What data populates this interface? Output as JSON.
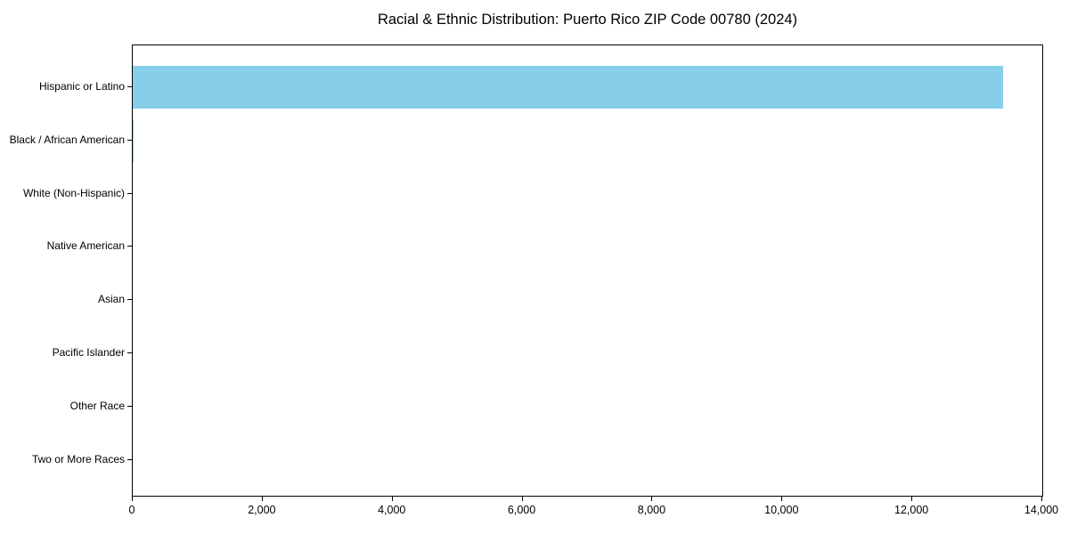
{
  "figure": {
    "background_color": "#ffffff",
    "spine_color": "#000000",
    "text_color": "#000000"
  },
  "chart_data": {
    "type": "bar",
    "orientation": "horizontal",
    "title": "Racial & Ethnic Distribution: Puerto Rico ZIP Code 00780 (2024)",
    "categories": [
      "Hispanic or Latino",
      "Black / African American",
      "White (Non-Hispanic)",
      "Native American",
      "Asian",
      "Pacific Islander",
      "Other Race",
      "Two or More Races"
    ],
    "values": [
      13390,
      20,
      0,
      0,
      0,
      0,
      0,
      0
    ],
    "xlabel": "",
    "ylabel": "",
    "xlim": [
      0,
      14000
    ],
    "xticks": [
      0,
      2000,
      4000,
      6000,
      8000,
      10000,
      12000,
      14000
    ],
    "xtick_labels": [
      "0",
      "2,000",
      "4,000",
      "6,000",
      "8,000",
      "10,000",
      "12,000",
      "14,000"
    ],
    "bar_color": "#87CEEB",
    "grid": false,
    "legend": null
  }
}
